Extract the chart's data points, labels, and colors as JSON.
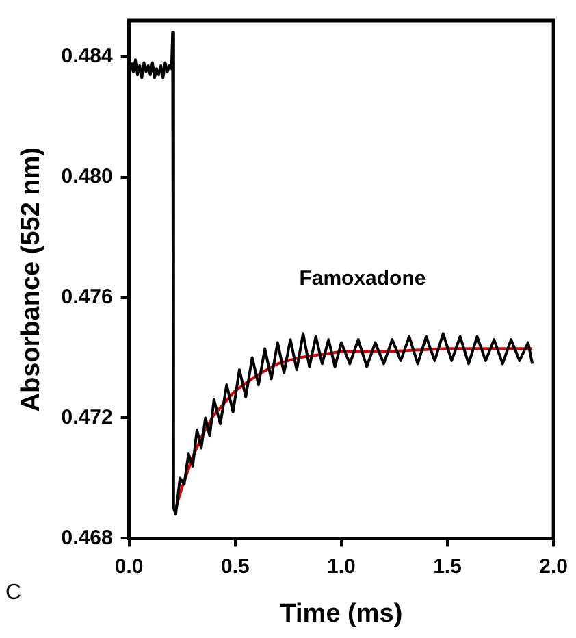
{
  "chart_data": {
    "type": "line",
    "xlabel": "Time (ms)",
    "ylabel": "Absorbance (552 nm)",
    "xlim": [
      0,
      2
    ],
    "xticks": [
      {
        "value": 0,
        "label": "0.0"
      },
      {
        "value": 0.5,
        "label": "0.5"
      },
      {
        "value": 1,
        "label": "1.0"
      },
      {
        "value": 1.5,
        "label": "1.5"
      },
      {
        "value": 2,
        "label": "2.0"
      }
    ],
    "ylim": [
      0.468,
      0.4852
    ],
    "yticks": [
      {
        "value": 0.468,
        "label": "0.468"
      },
      {
        "value": 0.472,
        "label": "0.472"
      },
      {
        "value": 0.476,
        "label": "0.476"
      },
      {
        "value": 0.48,
        "label": "0.480"
      },
      {
        "value": 0.484,
        "label": "0.484"
      }
    ],
    "series": [
      {
        "color": "#000000",
        "x": [
          0.01,
          0.02,
          0.03,
          0.04,
          0.05,
          0.06,
          0.07,
          0.08,
          0.09,
          0.1,
          0.11,
          0.12,
          0.13,
          0.14,
          0.15,
          0.16,
          0.17,
          0.18,
          0.19,
          0.2,
          0.205,
          0.21,
          0.22,
          0.24,
          0.26,
          0.28,
          0.3,
          0.32,
          0.34,
          0.36,
          0.38,
          0.4,
          0.43,
          0.46,
          0.49,
          0.52,
          0.55,
          0.58,
          0.61,
          0.64,
          0.67,
          0.7,
          0.73,
          0.76,
          0.79,
          0.82,
          0.85,
          0.88,
          0.91,
          0.94,
          0.97,
          1.0,
          1.04,
          1.08,
          1.12,
          1.16,
          1.2,
          1.24,
          1.28,
          1.32,
          1.36,
          1.4,
          1.44,
          1.48,
          1.52,
          1.56,
          1.6,
          1.64,
          1.68,
          1.72,
          1.76,
          1.8,
          1.84,
          1.88,
          1.9
        ],
        "values": [
          0.4838,
          0.4835,
          0.4839,
          0.4834,
          0.4837,
          0.4833,
          0.4838,
          0.4835,
          0.4837,
          0.4834,
          0.4838,
          0.4833,
          0.4836,
          0.4834,
          0.4837,
          0.4833,
          0.4838,
          0.4835,
          0.4837,
          0.4836,
          0.4848,
          0.469,
          0.4688,
          0.47,
          0.4698,
          0.4708,
          0.4704,
          0.4716,
          0.471,
          0.472,
          0.4714,
          0.4726,
          0.4718,
          0.4731,
          0.4722,
          0.4736,
          0.4727,
          0.474,
          0.4731,
          0.4743,
          0.4733,
          0.4745,
          0.4735,
          0.4746,
          0.4736,
          0.4748,
          0.4737,
          0.4747,
          0.4738,
          0.4746,
          0.4737,
          0.4745,
          0.4738,
          0.4746,
          0.4737,
          0.4745,
          0.4738,
          0.4746,
          0.4739,
          0.4747,
          0.4738,
          0.4747,
          0.4739,
          0.4748,
          0.4739,
          0.4747,
          0.4738,
          0.4747,
          0.4739,
          0.4746,
          0.4738,
          0.4746,
          0.4739,
          0.4745,
          0.4738
        ]
      },
      {
        "color": "#e00000",
        "x": [
          0.22,
          0.25,
          0.3,
          0.35,
          0.4,
          0.5,
          0.6,
          0.7,
          0.8,
          1.0,
          1.2,
          1.5,
          1.9
        ],
        "values": [
          0.469,
          0.4697,
          0.4707,
          0.4715,
          0.4721,
          0.4729,
          0.4734,
          0.4738,
          0.474,
          0.4742,
          0.4742,
          0.4743,
          0.4743
        ]
      }
    ],
    "annotations": [
      "Famoxadone",
      "C"
    ]
  }
}
